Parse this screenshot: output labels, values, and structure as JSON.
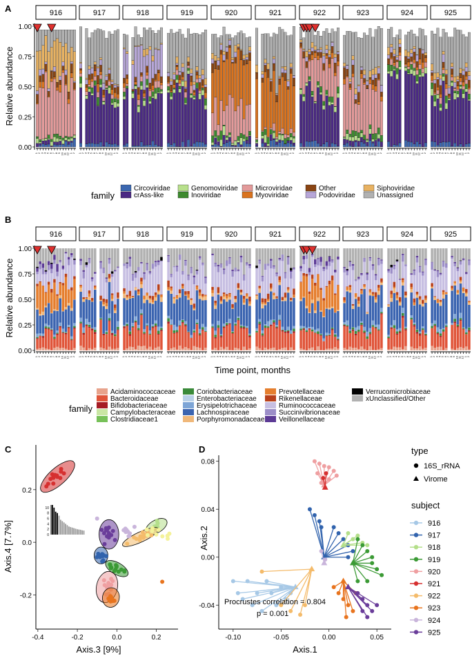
{
  "panels": {
    "A": {
      "label": "A",
      "ylabel": "Relative abundance",
      "yticks": [
        "0.00",
        "0.25",
        "0.50",
        "0.75",
        "1.00"
      ],
      "legend_title": "family",
      "legend_items": [
        {
          "name": "Circoviridae",
          "color": "#3b67b0"
        },
        {
          "name": "crAss-like",
          "color": "#4b2a84"
        },
        {
          "name": "Genomoviridae",
          "color": "#b8e08c"
        },
        {
          "name": "Inoviridae",
          "color": "#3d8a2e"
        },
        {
          "name": "Microviridae",
          "color": "#e39a9a"
        },
        {
          "name": "Myoviridae",
          "color": "#d9731f"
        },
        {
          "name": "Other",
          "color": "#8a4513"
        },
        {
          "name": "Podoviridae",
          "color": "#b7a6d8"
        },
        {
          "name": "Siphoviridae",
          "color": "#e8b262"
        },
        {
          "name": "Unassigned",
          "color": "#b1b1b1"
        }
      ]
    },
    "B": {
      "label": "B",
      "ylabel": "Relative abundance",
      "xlabel": "Time point, months",
      "yticks": [
        "0.00",
        "0.25",
        "0.50",
        "0.75",
        "1.00"
      ],
      "legend_title": "family",
      "legend_items": [
        {
          "name": "Acidaminococcaceae",
          "color": "#e8a38c"
        },
        {
          "name": "Bacteroidaceae",
          "color": "#e0553a"
        },
        {
          "name": "Bifidobacteriaceae",
          "color": "#a61c24"
        },
        {
          "name": "Campylobacteraceae",
          "color": "#c9e6a4"
        },
        {
          "name": "Clostridiaceae1",
          "color": "#77c159"
        },
        {
          "name": "Coriobacteriaceae",
          "color": "#3a8a3a"
        },
        {
          "name": "Enterobacteriaceae",
          "color": "#b9d1e8"
        },
        {
          "name": "Erysipelotrichaceae",
          "color": "#7da5d6"
        },
        {
          "name": "Lachnospiraceae",
          "color": "#3b64b0"
        },
        {
          "name": "Porphyromonadaceae",
          "color": "#f0b87a"
        },
        {
          "name": "Prevotellaceae",
          "color": "#e57e2e"
        },
        {
          "name": "Rikenellaceae",
          "color": "#b8401a"
        },
        {
          "name": "Ruminococcaceae",
          "color": "#c7bfe2"
        },
        {
          "name": "Succinivibrionaceae",
          "color": "#9c8ec8"
        },
        {
          "name": "Veillonellaceae",
          "color": "#5c3a95"
        },
        {
          "name": "Verrucomicrobiaceae",
          "color": "#000000"
        },
        {
          "name": "xUnclassified/Other",
          "color": "#b1b1b1"
        }
      ]
    },
    "C": {
      "label": "C",
      "xlabel": "Axis.3  [9%]",
      "ylabel": "Axis.4  [7.7%]",
      "xticks": [
        "-0.4",
        "-0.2",
        "0.0",
        "0.2"
      ],
      "yticks": [
        "-0.2",
        "0.0",
        "0.2"
      ],
      "inset_yticks": [
        "0",
        "2",
        "4",
        "6",
        "8",
        "10"
      ]
    },
    "D": {
      "label": "D",
      "xlabel": "Axis.1",
      "ylabel": "Axis.2",
      "xticks": [
        "-0.10",
        "-0.05",
        "0.00",
        "0.05"
      ],
      "yticks": [
        "-0.04",
        "0.00",
        "0.04",
        "0.08"
      ],
      "annotation1": "Procrustes correlation = 0.804",
      "annotation2": "p = 0.001"
    }
  },
  "subjects": [
    "916",
    "917",
    "918",
    "919",
    "920",
    "921",
    "922",
    "923",
    "924",
    "925"
  ],
  "legend_type": {
    "title": "type",
    "items": [
      {
        "name": "16S_rRNA",
        "shape": "circle"
      },
      {
        "name": "Virome",
        "shape": "triangle"
      }
    ]
  },
  "legend_subject": {
    "title": "subject",
    "items": [
      {
        "name": "916",
        "color": "#a6c8e6"
      },
      {
        "name": "917",
        "color": "#3163ad"
      },
      {
        "name": "918",
        "color": "#b4df8a"
      },
      {
        "name": "919",
        "color": "#3b9a35"
      },
      {
        "name": "920",
        "color": "#ef9fa1"
      },
      {
        "name": "921",
        "color": "#d63030"
      },
      {
        "name": "922",
        "color": "#f4bb6b"
      },
      {
        "name": "923",
        "color": "#e8741e"
      },
      {
        "name": "924",
        "color": "#c9b5db"
      },
      {
        "name": "925",
        "color": "#6a3d9a"
      }
    ]
  },
  "chart_data": [
    {
      "type": "bar",
      "title": "",
      "ylabel": "Relative abundance",
      "ylim": [
        0,
        1
      ],
      "facets": [
        "916",
        "917",
        "918",
        "919",
        "920",
        "921",
        "922",
        "923",
        "924",
        "925"
      ],
      "series": [
        {
          "name": "Circoviridae"
        },
        {
          "name": "crAss-like"
        },
        {
          "name": "Genomoviridae"
        },
        {
          "name": "Inoviridae"
        },
        {
          "name": "Microviridae"
        },
        {
          "name": "Myoviridae"
        },
        {
          "name": "Other"
        },
        {
          "name": "Podoviridae"
        },
        {
          "name": "Siphoviridae"
        },
        {
          "name": "Unassigned"
        }
      ]
    },
    {
      "type": "bar",
      "title": "",
      "xlabel": "Time point, months",
      "ylabel": "Relative abundance",
      "ylim": [
        0,
        1
      ],
      "facets": [
        "916",
        "917",
        "918",
        "919",
        "920",
        "921",
        "922",
        "923",
        "924",
        "925"
      ]
    },
    {
      "type": "scatter",
      "xlabel": "Axis.3  [9%]",
      "ylabel": "Axis.4  [7.7%]",
      "xlim": [
        -0.41,
        0.31
      ],
      "ylim": [
        -0.33,
        0.37
      ],
      "groups": [
        {
          "subject": "916",
          "color": "#a6c8e6",
          "centroid": [
            0.2,
            0.04
          ]
        },
        {
          "subject": "917",
          "color": "#3163ad",
          "centroid": [
            -0.08,
            -0.05
          ]
        },
        {
          "subject": "918",
          "color": "#b4df8a",
          "centroid": [
            0.2,
            0.06
          ]
        },
        {
          "subject": "919",
          "color": "#3b9a35",
          "centroid": [
            0.0,
            -0.1
          ]
        },
        {
          "subject": "920",
          "color": "#ef9fa1",
          "centroid": [
            -0.05,
            -0.17
          ]
        },
        {
          "subject": "921",
          "color": "#d63030",
          "centroid": [
            -0.3,
            0.25
          ]
        },
        {
          "subject": "922",
          "color": "#f4bb6b",
          "centroid": [
            0.12,
            0.02
          ]
        },
        {
          "subject": "923",
          "color": "#e8741e",
          "centroid": [
            -0.03,
            -0.2
          ]
        },
        {
          "subject": "924",
          "color": "#c9b5db",
          "centroid": [
            0.05,
            0.03
          ]
        },
        {
          "subject": "925",
          "color": "#6a3d9a",
          "centroid": [
            -0.04,
            0.03
          ]
        }
      ]
    },
    {
      "type": "scatter",
      "xlabel": "Axis.1",
      "ylabel": "Axis.2",
      "xlim": [
        -0.115,
        0.065
      ],
      "ylim": [
        -0.06,
        0.085
      ],
      "annotation": "Procrustes correlation = 0.804",
      "p_value": "p = 0.001",
      "groups": [
        {
          "subject": "916",
          "color": "#a6c8e6",
          "virome": [
            -0.035,
            -0.025
          ],
          "points16S": [
            [
              -0.1,
              -0.02
            ],
            [
              -0.095,
              -0.03
            ],
            [
              -0.09,
              -0.035
            ],
            [
              -0.085,
              -0.02
            ],
            [
              -0.08,
              -0.04
            ],
            [
              -0.075,
              -0.03
            ],
            [
              -0.07,
              -0.045
            ],
            [
              -0.065,
              -0.02
            ],
            [
              -0.06,
              -0.03
            ],
            [
              -0.055,
              -0.04
            ],
            [
              -0.05,
              -0.025
            ],
            [
              -0.045,
              -0.035
            ],
            [
              -0.04,
              -0.03
            ]
          ]
        },
        {
          "subject": "917",
          "color": "#3163ad",
          "virome": [
            -0.005,
            0.0
          ],
          "points16S": [
            [
              -0.02,
              0.04
            ],
            [
              -0.015,
              0.035
            ],
            [
              -0.01,
              0.03
            ],
            [
              -0.008,
              0.025
            ],
            [
              0.005,
              0.025
            ],
            [
              0.01,
              0.02
            ],
            [
              0.015,
              0.015
            ],
            [
              0.02,
              0.01
            ],
            [
              0.02,
              0.0
            ],
            [
              0.025,
              0.005
            ]
          ]
        },
        {
          "subject": "918",
          "color": "#b4df8a",
          "virome": [
            0.015,
            0.01
          ],
          "points16S": [
            [
              0.02,
              0.02
            ],
            [
              0.025,
              0.015
            ],
            [
              0.03,
              0.018
            ],
            [
              0.035,
              0.012
            ],
            [
              0.04,
              0.01
            ]
          ]
        },
        {
          "subject": "919",
          "color": "#3b9a35",
          "virome": [
            0.025,
            -0.005
          ],
          "points16S": [
            [
              0.03,
              0.015
            ],
            [
              0.035,
              0.01
            ],
            [
              0.04,
              0.005
            ],
            [
              0.045,
              -0.005
            ],
            [
              0.05,
              -0.01
            ],
            [
              0.055,
              -0.015
            ],
            [
              0.04,
              -0.02
            ],
            [
              0.03,
              -0.02
            ],
            [
              0.045,
              0.0
            ]
          ]
        },
        {
          "subject": "920",
          "color": "#ef9fa1",
          "virome": [
            -0.005,
            0.06
          ],
          "points16S": [
            [
              -0.015,
              0.08
            ],
            [
              -0.01,
              0.078
            ],
            [
              -0.005,
              0.076
            ],
            [
              0.0,
              0.075
            ],
            [
              0.005,
              0.072
            ],
            [
              -0.012,
              0.07
            ],
            [
              0.0,
              0.065
            ],
            [
              0.008,
              0.068
            ],
            [
              -0.008,
              0.062
            ]
          ]
        },
        {
          "subject": "921",
          "color": "#d63030",
          "virome": [
            -0.004,
            0.058
          ],
          "points16S": [
            [
              -0.006,
              0.066
            ],
            [
              -0.003,
              0.07
            ]
          ]
        },
        {
          "subject": "922",
          "color": "#f4bb6b",
          "virome": [
            -0.018,
            -0.01
          ],
          "points16S": [
            [
              -0.07,
              -0.012
            ],
            [
              -0.05,
              -0.04
            ],
            [
              -0.04,
              -0.045
            ],
            [
              -0.03,
              -0.048
            ],
            [
              -0.025,
              -0.04
            ]
          ]
        },
        {
          "subject": "923",
          "color": "#e8741e",
          "virome": [
            0.015,
            -0.02
          ],
          "points16S": [
            [
              0.005,
              -0.025
            ],
            [
              0.01,
              -0.03
            ],
            [
              0.015,
              -0.035
            ],
            [
              0.02,
              -0.04
            ],
            [
              0.025,
              -0.045
            ],
            [
              0.018,
              -0.05
            ],
            [
              0.028,
              -0.03
            ]
          ]
        },
        {
          "subject": "924",
          "color": "#c9b5db",
          "virome": [
            -0.005,
            -0.005
          ],
          "points16S": [
            [
              -0.008,
              0.005
            ],
            [
              -0.004,
              -0.002
            ]
          ]
        },
        {
          "subject": "925",
          "color": "#6a3d9a",
          "virome": [
            0.02,
            -0.025
          ],
          "points16S": [
            [
              0.03,
              -0.03
            ],
            [
              0.035,
              -0.035
            ],
            [
              0.04,
              -0.04
            ],
            [
              0.045,
              -0.045
            ],
            [
              0.05,
              -0.04
            ],
            [
              0.04,
              -0.05
            ],
            [
              0.035,
              -0.045
            ]
          ]
        }
      ]
    }
  ]
}
